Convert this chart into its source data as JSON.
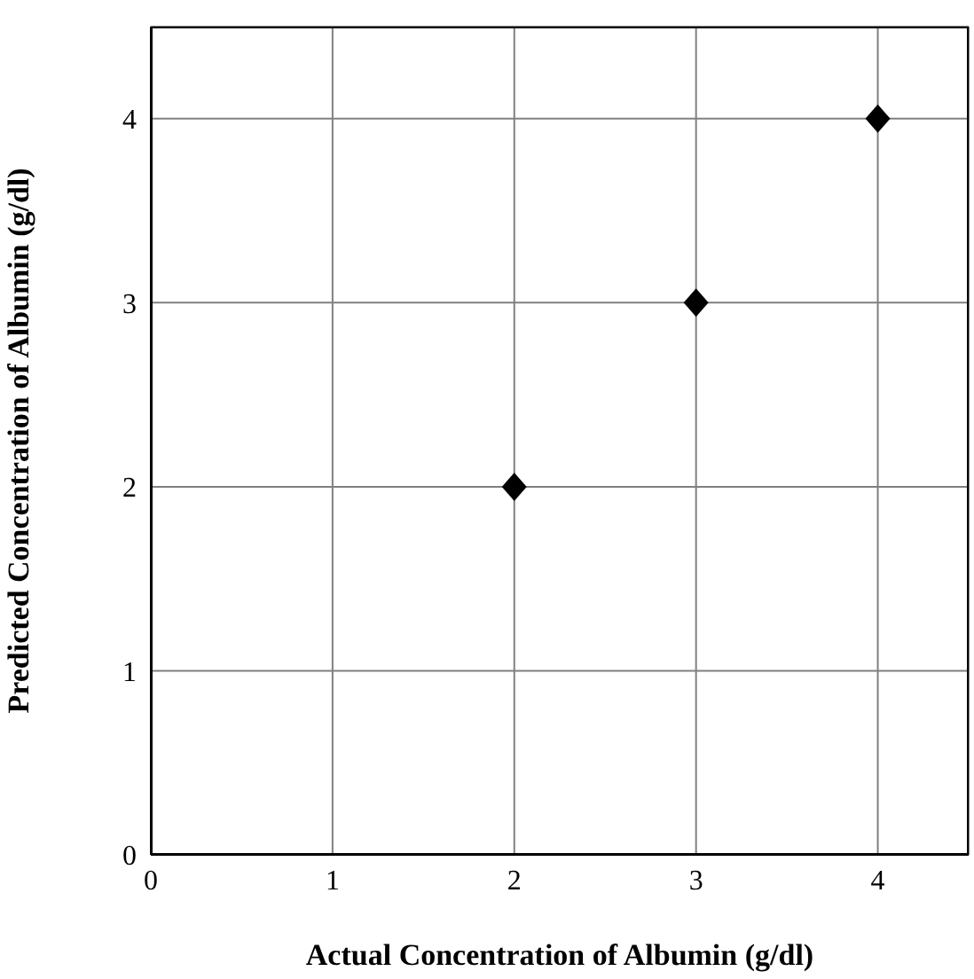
{
  "chart_data": {
    "type": "scatter",
    "xlabel": "Actual Concentration of Albumin  (g/dl)",
    "ylabel": "Predicted Concentration of Albumin  (g/dl)",
    "x": [
      2,
      3,
      4
    ],
    "series": [
      {
        "color": "#000000",
        "values": [
          2,
          3,
          4
        ]
      }
    ],
    "xlim": [
      0,
      4.5
    ],
    "ylim": [
      0,
      4.5
    ],
    "xticks": [
      0,
      1,
      2,
      3,
      4
    ],
    "yticks": [
      0,
      1,
      2,
      3,
      4
    ],
    "grid": true,
    "marker": "diamond"
  }
}
